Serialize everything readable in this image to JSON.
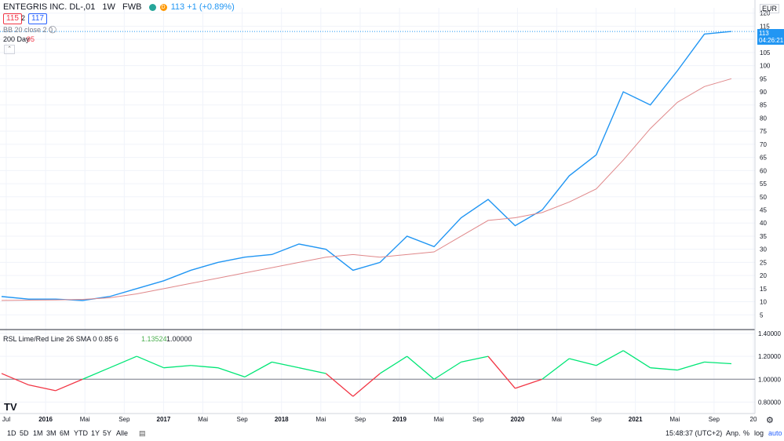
{
  "header": {
    "symbol": "ENTEGRIS INC. DL-,01",
    "interval": "1W",
    "exchange": "FWB",
    "quote": "113 +1 (+0.89%)",
    "bid": "115",
    "spread": "2",
    "ask": "117",
    "bb_label": "BB 20 close 2 0",
    "ma_label": "200 Day",
    "ma_value": "95"
  },
  "price_axis": {
    "currency": "EUR",
    "ticks": [
      "5",
      "10",
      "15",
      "20",
      "25",
      "30",
      "35",
      "40",
      "45",
      "50",
      "55",
      "60",
      "65",
      "70",
      "75",
      "80",
      "85",
      "90",
      "95",
      "100",
      "105",
      "110",
      "115",
      "120"
    ],
    "last_price": "113",
    "countdown": "04:26:21"
  },
  "indicator": {
    "label": "RSL Lime/Red Line 26 SMA 0 0.85 6",
    "value1": "1.13524",
    "value2": "1.00000",
    "ticks": [
      "0.80000",
      "1.00000",
      "1.20000",
      "1.40000"
    ]
  },
  "time_axis": [
    "Jul",
    "2016",
    "Mai",
    "Sep",
    "2017",
    "Mai",
    "Sep",
    "2018",
    "Mai",
    "Sep",
    "2019",
    "Mai",
    "Sep",
    "2020",
    "Mai",
    "Sep",
    "2021",
    "Mai",
    "Sep",
    "20"
  ],
  "toolbar": {
    "ranges": [
      "1D",
      "5D",
      "1M",
      "3M",
      "6M",
      "YTD",
      "1Y",
      "5Y",
      "Alle"
    ],
    "time": "15:48:37 (UTC+2)",
    "adj": "Anp.",
    "pct": "%",
    "log": "log",
    "auto": "auto"
  },
  "chart_data": {
    "type": "line",
    "x": [
      "2015-07",
      "2015-10",
      "2016-01",
      "2016-04",
      "2016-07",
      "2016-10",
      "2017-01",
      "2017-04",
      "2017-07",
      "2017-10",
      "2018-01",
      "2018-04",
      "2018-07",
      "2018-10",
      "2019-01",
      "2019-04",
      "2019-07",
      "2019-10",
      "2020-01",
      "2020-03",
      "2020-04",
      "2020-07",
      "2020-10",
      "2021-01",
      "2021-04",
      "2021-07",
      "2021-09",
      "2021-10"
    ],
    "series": [
      {
        "color": "#2196f3",
        "values": [
          12,
          11,
          11,
          10.5,
          12,
          15,
          18,
          22,
          25,
          27,
          28,
          32,
          30,
          22,
          25,
          35,
          31,
          42,
          49,
          39,
          45,
          58,
          66,
          90,
          85,
          98,
          112,
          113
        ]
      },
      {
        "color": "#e0888a",
        "values": [
          10.5,
          10.6,
          10.7,
          10.9,
          11.5,
          13,
          15,
          17,
          19,
          21,
          23,
          25,
          27,
          28,
          27,
          28,
          29,
          35,
          41,
          42,
          44,
          48,
          53,
          64,
          76,
          86,
          92,
          95
        ]
      }
    ],
    "ylim": [
      0,
      122
    ],
    "indicator_series": {
      "values": [
        1.05,
        0.95,
        0.9,
        1.0,
        1.1,
        1.2,
        1.1,
        1.12,
        1.1,
        1.02,
        1.15,
        1.1,
        1.05,
        0.85,
        1.05,
        1.2,
        1.0,
        1.15,
        1.2,
        0.92,
        1.0,
        1.18,
        1.12,
        1.25,
        1.1,
        1.08,
        1.15,
        1.13524
      ],
      "ylim": [
        0.7,
        1.42
      ]
    }
  }
}
